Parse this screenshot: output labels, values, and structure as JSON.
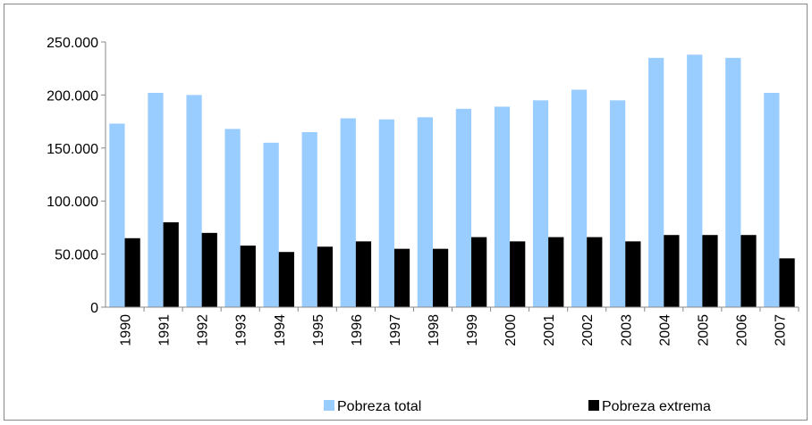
{
  "chart_data": {
    "type": "bar",
    "categories": [
      "1990",
      "1991",
      "1992",
      "1993",
      "1994",
      "1995",
      "1996",
      "1997",
      "1998",
      "1999",
      "2000",
      "2001",
      "2002",
      "2003",
      "2004",
      "2005",
      "2006",
      "2007"
    ],
    "series": [
      {
        "name": "Pobreza total",
        "color": "#99ccff",
        "values": [
          173000,
          202000,
          200000,
          168000,
          155000,
          165000,
          178000,
          177000,
          179000,
          187000,
          189000,
          195000,
          205000,
          195000,
          235000,
          238000,
          235000,
          202000
        ]
      },
      {
        "name": "Pobreza extrema",
        "color": "#000000",
        "values": [
          65000,
          80000,
          70000,
          58000,
          52000,
          57000,
          62000,
          55000,
          55000,
          66000,
          62000,
          66000,
          66000,
          62000,
          68000,
          68000,
          68000,
          46000
        ]
      }
    ],
    "ylim": [
      0,
      250000
    ],
    "yticks": [
      0,
      {
        "value": 50000,
        "label": "50.000"
      },
      {
        "value": 100000,
        "label": "100.000"
      },
      {
        "value": 150000,
        "label": "150.000"
      },
      {
        "value": 200000,
        "label": "200.000"
      },
      {
        "value": 250000,
        "label": "250.000"
      }
    ],
    "grid": false,
    "legend": "bottom"
  }
}
